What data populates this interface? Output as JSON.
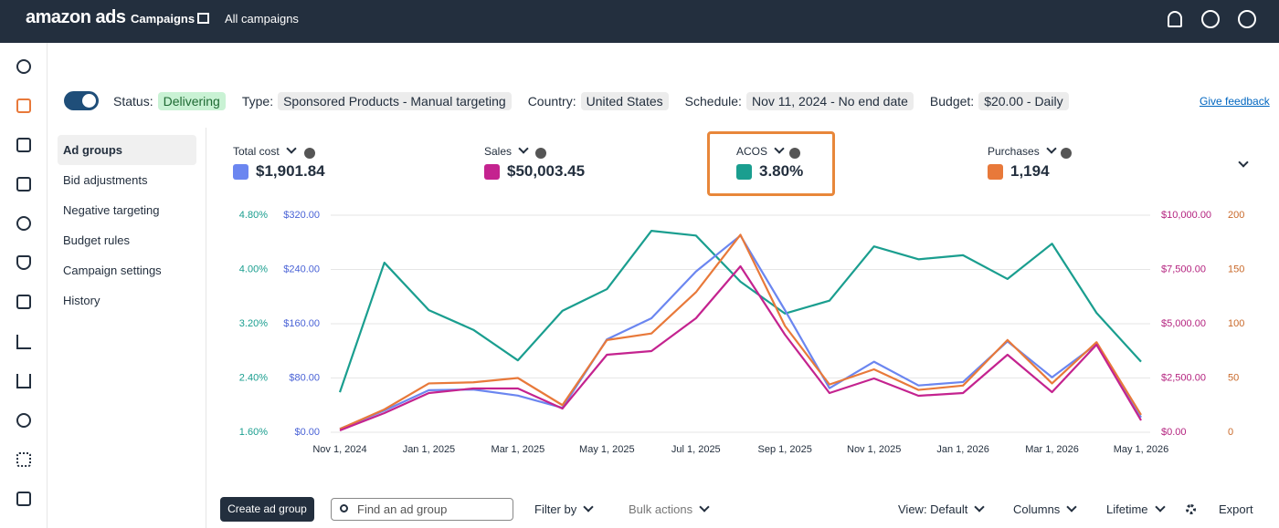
{
  "nav": {
    "brand": "amazon ads",
    "items": [
      "Campaigns",
      "All campaigns"
    ]
  },
  "status": {
    "fields": [
      {
        "label": "Status:",
        "value": "Delivering"
      },
      {
        "label": "Type:",
        "value": "Sponsored Products - Manual targeting"
      },
      {
        "label": "Country:",
        "value": "United States"
      },
      {
        "label": "Schedule:",
        "value": "Nov 11, 2024 - No end date"
      },
      {
        "label": "Budget:",
        "value": "$20.00 - Daily"
      }
    ],
    "feedback": "Give feedback"
  },
  "sidebar": [
    "Ad groups",
    "Bid adjustments",
    "Negative targeting",
    "Budget rules",
    "Campaign settings",
    "History"
  ],
  "metrics": [
    {
      "name": "Total cost",
      "value": "$1,901.84",
      "color": "#6b86f0"
    },
    {
      "name": "Sales",
      "value": "$50,003.45",
      "color": "#c4238f"
    },
    {
      "name": "ACOS",
      "value": "3.80%",
      "color": "#1a9e8f"
    },
    {
      "name": "Purchases",
      "value": "1,194",
      "color": "#e8793a"
    }
  ],
  "chart_data": {
    "type": "line",
    "categories": [
      "Nov 1, 2024",
      null,
      "Jan 1, 2025",
      null,
      "Mar 1, 2025",
      null,
      "May 1, 2025",
      null,
      "Jul 1, 2025",
      null,
      "Sep 1, 2025",
      null,
      "Nov 1, 2025",
      null,
      "Jan 1, 2026",
      null,
      "Mar 1, 2026",
      null,
      "May 1, 2026"
    ],
    "ylim": [
      0,
      320
    ],
    "yticks": [
      {
        "value": 0,
        "label": "$0.00"
      },
      {
        "value": 80,
        "label": "$80.00"
      },
      {
        "value": 160,
        "label": "$160.00"
      },
      {
        "value": 240,
        "label": "$240.00"
      },
      {
        "value": 320,
        "label": "$320.00"
      }
    ],
    "y2lim": [
      0,
      10000
    ],
    "y2ticks": [
      {
        "value": 0,
        "label": "$0.00"
      },
      {
        "value": 2500,
        "label": "$2,500.00"
      },
      {
        "value": 5000,
        "label": "$5,000.00"
      },
      {
        "value": 7500,
        "label": "$7,500.00"
      },
      {
        "value": 10000,
        "label": "$10,000.00"
      }
    ],
    "y3lim": [
      1.6,
      4.8
    ],
    "y3ticks": [
      {
        "value": 1.6,
        "label": "1.60%"
      },
      {
        "value": 2.4,
        "label": "2.40%"
      },
      {
        "value": 3.2,
        "label": "3.20%"
      },
      {
        "value": 4.0,
        "label": "4.00%"
      },
      {
        "value": 4.8,
        "label": "4.80%"
      }
    ],
    "y4lim": [
      0,
      200
    ],
    "y4ticks": [
      0,
      50,
      100,
      150,
      200
    ],
    "grid": true,
    "series": [
      {
        "name": "ACOS",
        "color": "#1a9e8f",
        "axis": "y3",
        "values": [
          2.19,
          4.1,
          3.4,
          3.11,
          2.66,
          3.39,
          3.71,
          4.57,
          4.5,
          3.82,
          3.35,
          3.54,
          4.34,
          4.15,
          4.21,
          3.86,
          4.38,
          3.36,
          2.64
        ]
      },
      {
        "name": "Total cost",
        "color": "#6b86f0",
        "axis": "y",
        "values": [
          5,
          32,
          62,
          63,
          54,
          36,
          137,
          168,
          237,
          290,
          180,
          65,
          104,
          69,
          74,
          134,
          81,
          130,
          22
        ]
      },
      {
        "name": "Purchases",
        "color": "#e8793a",
        "axis": "y4",
        "values": [
          3,
          21,
          45,
          46,
          50,
          25,
          85,
          91,
          129,
          182,
          98,
          44,
          58,
          39,
          43,
          85,
          45,
          83,
          16
        ]
      },
      {
        "name": "Sales",
        "color": "#c4238f",
        "axis": "y2",
        "values": [
          84,
          882,
          1807,
          2017,
          2017,
          1092,
          3571,
          3739,
          5252,
          7647,
          4496,
          1807,
          2479,
          1681,
          1807,
          3571,
          1849,
          4034,
          546
        ]
      }
    ]
  },
  "toolbar": {
    "create": "Create ad group",
    "search": "Find an ad group",
    "filter": "Filter by",
    "bulk": "Bulk actions",
    "view": "View: Default",
    "columns": "Columns",
    "range": "Lifetime",
    "export": "Export"
  }
}
